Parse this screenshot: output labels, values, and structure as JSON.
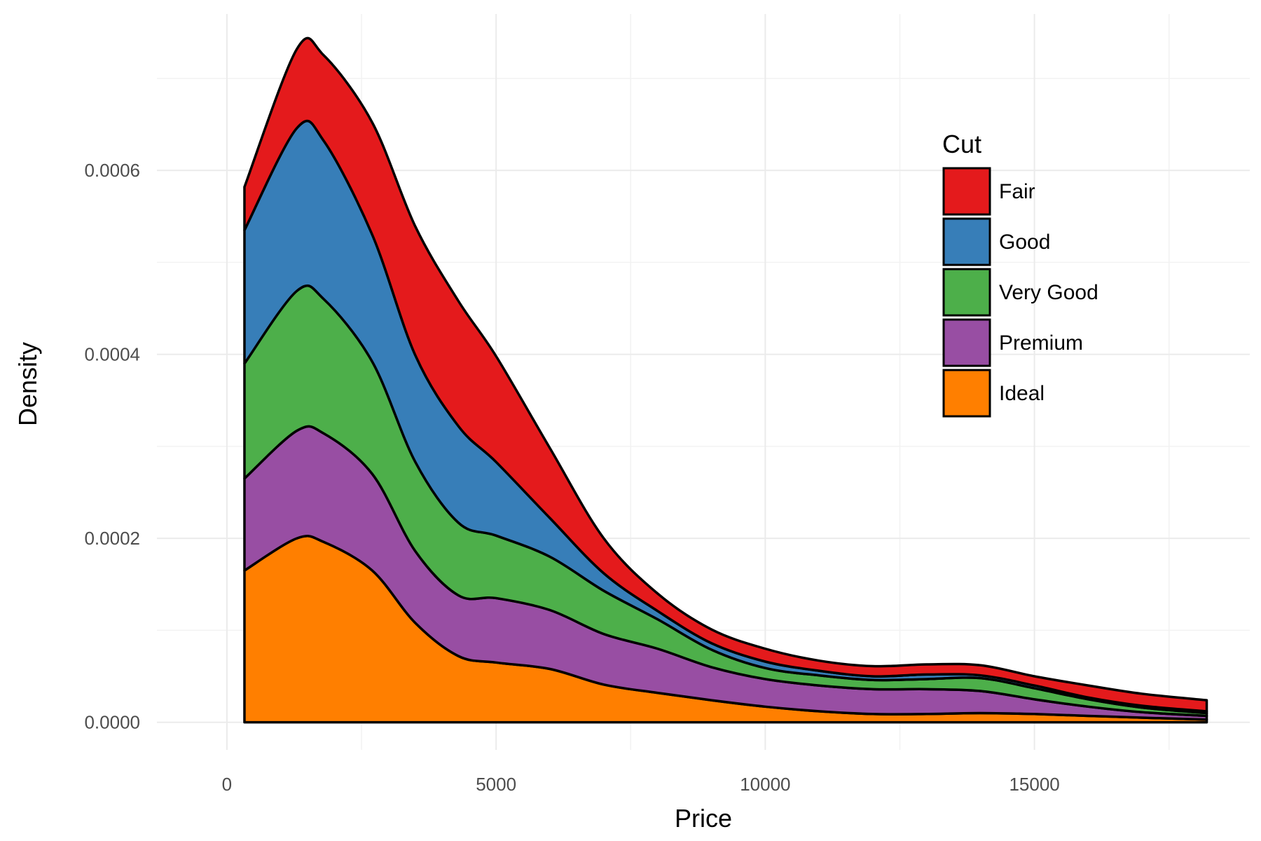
{
  "chart_data": {
    "type": "area",
    "stacked": true,
    "title": "",
    "xlabel": "Price",
    "ylabel": "Density",
    "xlim": [
      -1300,
      19000
    ],
    "ylim": [
      -3e-05,
      0.00077
    ],
    "xticks": [
      0,
      5000,
      10000,
      15000
    ],
    "xtick_labels": [
      "0",
      "5000",
      "10000",
      "15000"
    ],
    "yticks": [
      0.0,
      0.0002,
      0.0004,
      0.0006
    ],
    "ytick_labels": [
      "0.0000",
      "0.0002",
      "0.0004",
      "0.0006"
    ],
    "grid": true,
    "legend_title": "Cut",
    "legend_position": "top-right inside",
    "x": [
      326,
      1300,
      1800,
      2700,
      3500,
      4300,
      5000,
      6000,
      7000,
      8000,
      9000,
      10000,
      11000,
      12000,
      13000,
      14000,
      15000,
      16000,
      17000,
      18200
    ],
    "series": [
      {
        "name": "Ideal",
        "color": "#FF7F00",
        "values": [
          0.000165,
          0.0002,
          0.000196,
          0.000165,
          0.000108,
          7.2e-05,
          6.5e-05,
          5.8e-05,
          4.1e-05,
          3.2e-05,
          2.4e-05,
          1.7e-05,
          1.2e-05,
          9e-06,
          9e-06,
          1e-05,
          9e-06,
          7e-06,
          5e-06,
          3e-06
        ]
      },
      {
        "name": "Premium",
        "color": "#984EA3",
        "values": [
          0.0001,
          0.000117,
          0.000118,
          0.000105,
          7.8e-05,
          6.6e-05,
          7e-05,
          6.4e-05,
          5.5e-05,
          4.8e-05,
          3.6e-05,
          3e-05,
          2.8e-05,
          2.7e-05,
          2.7e-05,
          2.4e-05,
          1.6e-05,
          1e-05,
          6e-06,
          4e-06
        ]
      },
      {
        "name": "Very Good",
        "color": "#4DAF4A",
        "values": [
          0.000125,
          0.000152,
          0.000146,
          0.000122,
          9.7e-05,
          7.9e-05,
          6.8e-05,
          5.8e-05,
          4.7e-05,
          3.2e-05,
          1.9e-05,
          1.2e-05,
          1.1e-05,
          1e-05,
          1.1e-05,
          1.4e-05,
          1.2e-05,
          8e-06,
          5e-06,
          3e-06
        ]
      },
      {
        "name": "Good",
        "color": "#377EB8",
        "values": [
          0.000145,
          0.000177,
          0.000172,
          0.000138,
          0.000116,
          0.000105,
          8e-05,
          4.2e-05,
          1.9e-05,
          9e-06,
          7e-06,
          7e-06,
          5e-06,
          4e-06,
          5e-06,
          3e-06,
          3e-06,
          2e-06,
          2e-06,
          2e-06
        ]
      },
      {
        "name": "Fair",
        "color": "#E41A1C",
        "values": [
          4.7e-05,
          8.6e-05,
          9.3e-05,
          0.000122,
          0.00014,
          0.000136,
          0.000115,
          7.6e-05,
          3.8e-05,
          1.9e-05,
          1.5e-05,
          1.4e-05,
          1.1e-05,
          1.1e-05,
          1.1e-05,
          1.1e-05,
          1e-05,
          1.3e-05,
          1.3e-05,
          1.2e-05
        ]
      }
    ]
  }
}
